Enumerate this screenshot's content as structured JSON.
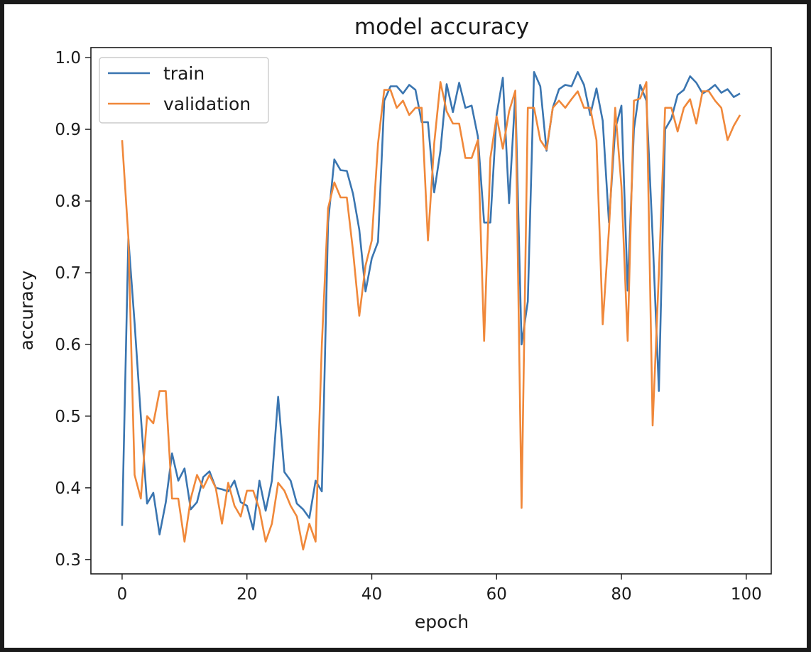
{
  "colors": {
    "train": "#3a75b0",
    "validation": "#f0883a",
    "axes": "#1a1a1a",
    "background": "#ffffff"
  },
  "chart_data": {
    "type": "line",
    "title": "model accuracy",
    "xlabel": "epoch",
    "ylabel": "accuracy",
    "xlim": [
      -5,
      104
    ],
    "ylim": [
      0.28,
      1.014
    ],
    "xticks": [
      0,
      20,
      40,
      60,
      80,
      100
    ],
    "yticks": [
      0.3,
      0.4,
      0.5,
      0.6,
      0.7,
      0.8,
      0.9,
      1.0
    ],
    "xtick_labels": [
      "0",
      "20",
      "40",
      "60",
      "80",
      "100"
    ],
    "ytick_labels": [
      "0.3",
      "0.4",
      "0.5",
      "0.6",
      "0.7",
      "0.8",
      "0.9",
      "1.0"
    ],
    "grid": false,
    "legend": "top-left",
    "series": [
      {
        "name": "train",
        "color": "#3a75b0",
        "values": [
          0.347,
          0.748,
          0.63,
          0.5,
          0.378,
          0.393,
          0.335,
          0.38,
          0.448,
          0.41,
          0.427,
          0.37,
          0.38,
          0.415,
          0.423,
          0.4,
          0.398,
          0.395,
          0.41,
          0.38,
          0.375,
          0.342,
          0.41,
          0.368,
          0.41,
          0.527,
          0.422,
          0.41,
          0.378,
          0.37,
          0.358,
          0.41,
          0.395,
          0.77,
          0.858,
          0.843,
          0.842,
          0.81,
          0.76,
          0.674,
          0.72,
          0.743,
          0.94,
          0.96,
          0.96,
          0.95,
          0.962,
          0.955,
          0.91,
          0.91,
          0.812,
          0.87,
          0.963,
          0.924,
          0.965,
          0.93,
          0.933,
          0.89,
          0.77,
          0.77,
          0.92,
          0.972,
          0.797,
          0.95,
          0.6,
          0.66,
          0.98,
          0.96,
          0.87,
          0.93,
          0.956,
          0.962,
          0.96,
          0.98,
          0.962,
          0.92,
          0.957,
          0.912,
          0.77,
          0.9,
          0.933,
          0.675,
          0.9,
          0.962,
          0.94,
          0.75,
          0.535,
          0.9,
          0.915,
          0.948,
          0.955,
          0.974,
          0.965,
          0.95,
          0.955,
          0.962,
          0.951,
          0.956,
          0.945,
          0.95
        ]
      },
      {
        "name": "validation",
        "color": "#f0883a",
        "values": [
          0.885,
          0.75,
          0.418,
          0.385,
          0.5,
          0.49,
          0.535,
          0.535,
          0.385,
          0.385,
          0.325,
          0.385,
          0.418,
          0.4,
          0.418,
          0.4,
          0.35,
          0.407,
          0.375,
          0.36,
          0.396,
          0.396,
          0.37,
          0.325,
          0.35,
          0.407,
          0.396,
          0.375,
          0.36,
          0.314,
          0.35,
          0.325,
          0.6,
          0.79,
          0.826,
          0.805,
          0.805,
          0.73,
          0.64,
          0.71,
          0.745,
          0.88,
          0.955,
          0.955,
          0.93,
          0.94,
          0.92,
          0.93,
          0.93,
          0.745,
          0.88,
          0.966,
          0.925,
          0.908,
          0.908,
          0.86,
          0.86,
          0.885,
          0.605,
          0.86,
          0.918,
          0.873,
          0.925,
          0.954,
          0.372,
          0.93,
          0.93,
          0.885,
          0.872,
          0.93,
          0.94,
          0.93,
          0.942,
          0.953,
          0.93,
          0.93,
          0.885,
          0.628,
          0.76,
          0.93,
          0.82,
          0.605,
          0.94,
          0.943,
          0.966,
          0.487,
          0.7,
          0.93,
          0.93,
          0.897,
          0.93,
          0.942,
          0.908,
          0.953,
          0.953,
          0.94,
          0.93,
          0.885,
          0.905,
          0.92
        ]
      }
    ]
  }
}
